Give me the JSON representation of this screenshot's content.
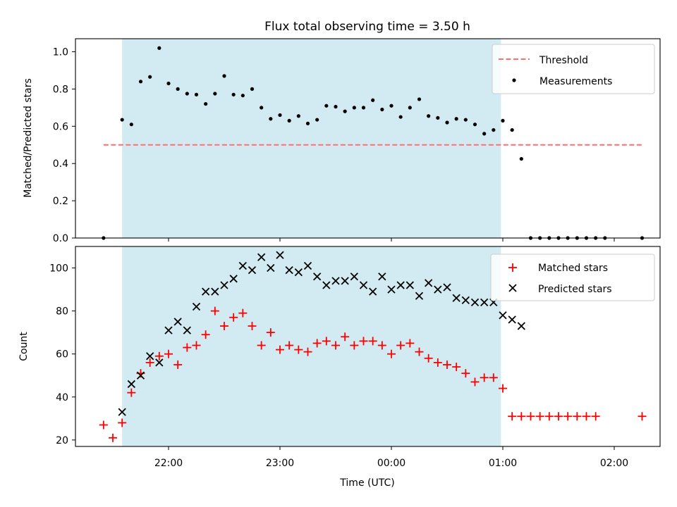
{
  "chart_data": [
    {
      "type": "scatter",
      "title": "Flux total observing time = 3.50 h",
      "xlabel": "",
      "ylabel": "Matched/Predicted stars",
      "x_axis": {
        "type": "time",
        "tick_labels": [
          "22:00",
          "23:00",
          "00:00",
          "01:00",
          "02:00"
        ],
        "tick_labels_visible": false
      },
      "ylim": [
        0,
        1.07
      ],
      "yticks": [
        "0.0",
        "0.2",
        "0.4",
        "0.6",
        "0.8",
        "1.0"
      ],
      "shaded_span": {
        "start": "21:35",
        "end": "00:59",
        "color": "#add8e6"
      },
      "legend": {
        "position": "top-right"
      },
      "series": [
        {
          "name": "Threshold",
          "style": "dashed-line",
          "color": "#ff6f6f",
          "points": [
            [
              "21:25",
              0.5
            ],
            [
              "02:15",
              0.5
            ]
          ]
        },
        {
          "name": "Measurements",
          "style": "dot",
          "color": "#000000",
          "points": [
            [
              "21:25",
              0.0
            ],
            [
              "21:35",
              0.635
            ],
            [
              "21:40",
              0.61
            ],
            [
              "21:45",
              0.84
            ],
            [
              "21:50",
              0.865
            ],
            [
              "21:55",
              1.02
            ],
            [
              "22:00",
              0.83
            ],
            [
              "22:05",
              0.8
            ],
            [
              "22:10",
              0.775
            ],
            [
              "22:15",
              0.77
            ],
            [
              "22:20",
              0.72
            ],
            [
              "22:25",
              0.775
            ],
            [
              "22:30",
              0.87
            ],
            [
              "22:35",
              0.77
            ],
            [
              "22:40",
              0.765
            ],
            [
              "22:45",
              0.8
            ],
            [
              "22:50",
              0.7
            ],
            [
              "22:55",
              0.64
            ],
            [
              "23:00",
              0.66
            ],
            [
              "23:05",
              0.63
            ],
            [
              "23:10",
              0.655
            ],
            [
              "23:15",
              0.615
            ],
            [
              "23:20",
              0.635
            ],
            [
              "23:25",
              0.71
            ],
            [
              "23:30",
              0.705
            ],
            [
              "23:35",
              0.68
            ],
            [
              "23:40",
              0.7
            ],
            [
              "23:45",
              0.7
            ],
            [
              "23:50",
              0.74
            ],
            [
              "23:55",
              0.69
            ],
            [
              "00:00",
              0.71
            ],
            [
              "00:05",
              0.65
            ],
            [
              "00:10",
              0.7
            ],
            [
              "00:15",
              0.745
            ],
            [
              "00:20",
              0.655
            ],
            [
              "00:25",
              0.645
            ],
            [
              "00:30",
              0.62
            ],
            [
              "00:35",
              0.64
            ],
            [
              "00:40",
              0.635
            ],
            [
              "00:45",
              0.61
            ],
            [
              "00:50",
              0.56
            ],
            [
              "00:55",
              0.58
            ],
            [
              "01:00",
              0.63
            ],
            [
              "01:05",
              0.58
            ],
            [
              "01:10",
              0.425
            ],
            [
              "01:15",
              0.0
            ],
            [
              "01:20",
              0.0
            ],
            [
              "01:25",
              0.0
            ],
            [
              "01:30",
              0.0
            ],
            [
              "01:35",
              0.0
            ],
            [
              "01:40",
              0.0
            ],
            [
              "01:45",
              0.0
            ],
            [
              "01:50",
              0.0
            ],
            [
              "01:55",
              0.0
            ],
            [
              "02:15",
              0.0
            ]
          ]
        }
      ]
    },
    {
      "type": "scatter",
      "title": "",
      "xlabel": "Time (UTC)",
      "ylabel": "Count",
      "x_axis": {
        "type": "time",
        "tick_labels": [
          "22:00",
          "23:00",
          "00:00",
          "01:00",
          "02:00"
        ],
        "tick_labels_visible": true
      },
      "ylim": [
        17,
        110
      ],
      "yticks": [
        "20",
        "40",
        "60",
        "80",
        "100"
      ],
      "shaded_span": {
        "start": "21:35",
        "end": "00:59",
        "color": "#add8e6"
      },
      "legend": {
        "position": "top-right"
      },
      "series": [
        {
          "name": "Matched stars",
          "marker": "plus",
          "color": "#ff0000",
          "points": [
            [
              "21:25",
              27
            ],
            [
              "21:30",
              21
            ],
            [
              "21:35",
              28
            ],
            [
              "21:40",
              42
            ],
            [
              "21:45",
              51
            ],
            [
              "21:50",
              56
            ],
            [
              "21:55",
              59
            ],
            [
              "22:00",
              60
            ],
            [
              "22:05",
              55
            ],
            [
              "22:10",
              63
            ],
            [
              "22:15",
              64
            ],
            [
              "22:20",
              69
            ],
            [
              "22:25",
              80
            ],
            [
              "22:30",
              73
            ],
            [
              "22:35",
              77
            ],
            [
              "22:40",
              79
            ],
            [
              "22:45",
              73
            ],
            [
              "22:50",
              64
            ],
            [
              "22:55",
              70
            ],
            [
              "23:00",
              62
            ],
            [
              "23:05",
              64
            ],
            [
              "23:10",
              62
            ],
            [
              "23:15",
              61
            ],
            [
              "23:20",
              65
            ],
            [
              "23:25",
              66
            ],
            [
              "23:30",
              64
            ],
            [
              "23:35",
              68
            ],
            [
              "23:40",
              64
            ],
            [
              "23:45",
              66
            ],
            [
              "23:50",
              66
            ],
            [
              "23:55",
              64
            ],
            [
              "00:00",
              60
            ],
            [
              "00:05",
              64
            ],
            [
              "00:10",
              65
            ],
            [
              "00:15",
              61
            ],
            [
              "00:20",
              58
            ],
            [
              "00:25",
              56
            ],
            [
              "00:30",
              55
            ],
            [
              "00:35",
              54
            ],
            [
              "00:40",
              51
            ],
            [
              "00:45",
              47
            ],
            [
              "00:50",
              49
            ],
            [
              "00:55",
              49
            ],
            [
              "01:00",
              44
            ],
            [
              "01:05",
              31
            ],
            [
              "01:10",
              31
            ],
            [
              "01:15",
              31
            ],
            [
              "01:20",
              31
            ],
            [
              "01:25",
              31
            ],
            [
              "01:30",
              31
            ],
            [
              "01:35",
              31
            ],
            [
              "01:40",
              31
            ],
            [
              "01:45",
              31
            ],
            [
              "01:50",
              31
            ],
            [
              "02:15",
              31
            ]
          ]
        },
        {
          "name": "Predicted stars",
          "marker": "x",
          "color": "#000000",
          "points": [
            [
              "21:35",
              33
            ],
            [
              "21:40",
              46
            ],
            [
              "21:45",
              50
            ],
            [
              "21:50",
              59
            ],
            [
              "21:55",
              56
            ],
            [
              "22:00",
              71
            ],
            [
              "22:05",
              75
            ],
            [
              "22:10",
              71
            ],
            [
              "22:15",
              82
            ],
            [
              "22:20",
              89
            ],
            [
              "22:25",
              89
            ],
            [
              "22:30",
              92
            ],
            [
              "22:35",
              95
            ],
            [
              "22:40",
              101
            ],
            [
              "22:45",
              99
            ],
            [
              "22:50",
              105
            ],
            [
              "22:55",
              100
            ],
            [
              "23:00",
              106
            ],
            [
              "23:05",
              99
            ],
            [
              "23:10",
              98
            ],
            [
              "23:15",
              101
            ],
            [
              "23:20",
              96
            ],
            [
              "23:25",
              92
            ],
            [
              "23:30",
              94
            ],
            [
              "23:35",
              94
            ],
            [
              "23:40",
              96
            ],
            [
              "23:45",
              92
            ],
            [
              "23:50",
              89
            ],
            [
              "23:55",
              96
            ],
            [
              "00:00",
              90
            ],
            [
              "00:05",
              92
            ],
            [
              "00:10",
              92
            ],
            [
              "00:15",
              87
            ],
            [
              "00:20",
              93
            ],
            [
              "00:25",
              90
            ],
            [
              "00:30",
              91
            ],
            [
              "00:35",
              86
            ],
            [
              "00:40",
              85
            ],
            [
              "00:45",
              84
            ],
            [
              "00:50",
              84
            ],
            [
              "00:55",
              84
            ],
            [
              "01:00",
              78
            ],
            [
              "01:05",
              76
            ],
            [
              "01:10",
              73
            ]
          ]
        }
      ]
    }
  ]
}
